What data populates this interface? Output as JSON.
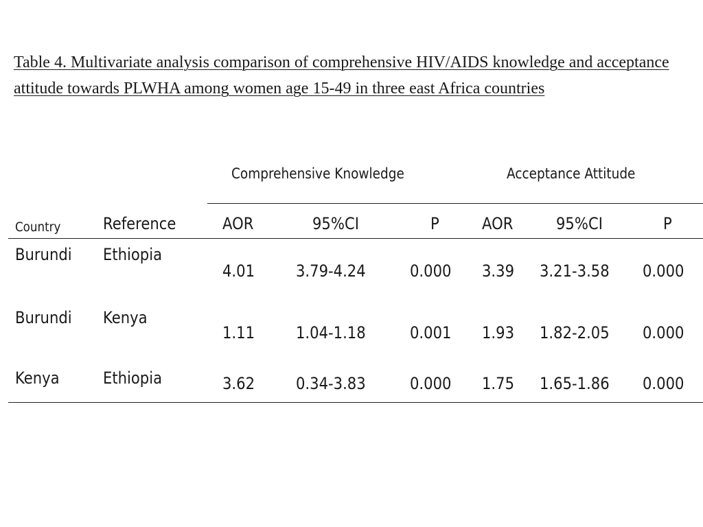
{
  "title": "Table 4. Multivariate analysis comparison of comprehensive HIV/AIDS knowledge and acceptance attitude towards PLWHA among women age 15-49 in three east Africa countries",
  "table": {
    "group_headers": {
      "knowledge": "Comprehensive Knowledge",
      "attitude": "Acceptance Attitude"
    },
    "columns": {
      "country": "Country",
      "reference": "Reference",
      "k_aor": "AOR",
      "k_ci": "95%CI",
      "k_p": "P",
      "a_aor": "AOR",
      "a_ci": "95%CI",
      "a_p": "P"
    },
    "rows": [
      {
        "country": "Burundi",
        "reference": "Ethiopia",
        "k_aor": "4.01",
        "k_ci": "3.79-4.24",
        "k_p": "0.000",
        "a_aor": "3.39",
        "a_ci": "3.21-3.58",
        "a_p": "0.000"
      },
      {
        "country": "Burundi",
        "reference": "Kenya",
        "k_aor": "1.11",
        "k_ci": "1.04-1.18",
        "k_p": "0.001",
        "a_aor": "1.93",
        "a_ci": "1.82-2.05",
        "a_p": "0.000"
      },
      {
        "country": "Kenya",
        "reference": "Ethiopia",
        "k_aor": "3.62",
        "k_ci": "0.34-3.83",
        "k_p": "0.000",
        "a_aor": "1.75",
        "a_ci": "1.65-1.86",
        "a_p": "0.000"
      }
    ]
  }
}
